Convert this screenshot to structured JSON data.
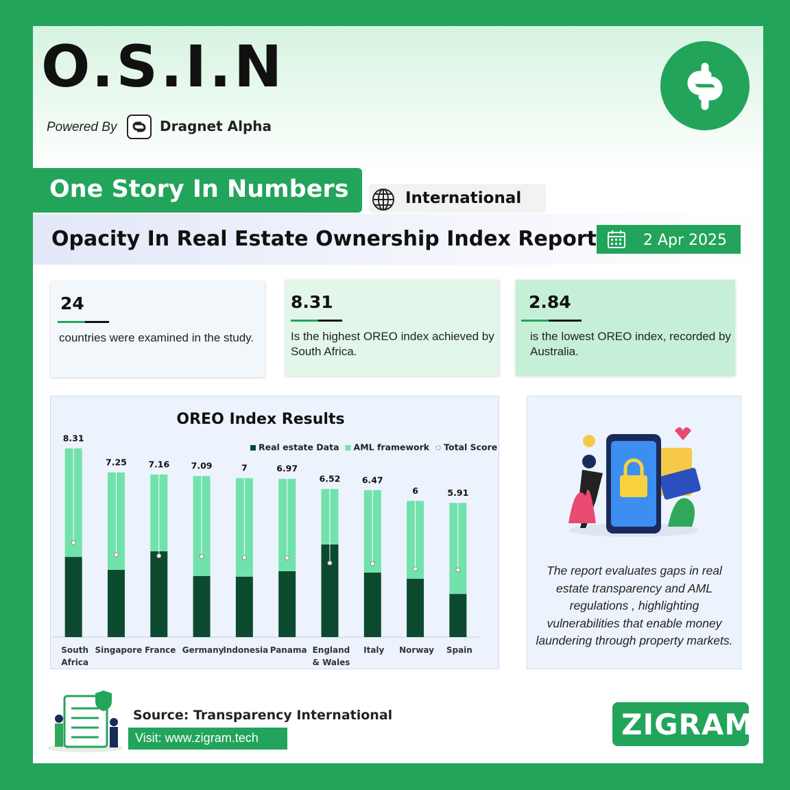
{
  "header": {
    "title": "O.S.I.N",
    "powered_by": "Powered By",
    "brand": "Dragnet Alpha"
  },
  "tab": "One Story In Numbers",
  "region": "International",
  "report_title": "Opacity In Real Estate Ownership Index Report",
  "date": "2 Apr 2025",
  "stats": [
    {
      "value": 24,
      "text": "countries were examined in the study."
    },
    {
      "value": 8.31,
      "text": "Is the highest OREO index achieved by South Africa."
    },
    {
      "value": 2.84,
      "text": "is the lowest OREO index, recorded by Australia."
    }
  ],
  "chart_data": {
    "type": "bar",
    "stacked": true,
    "title": "OREO Index Results",
    "categories": [
      "South Africa",
      "Singapore",
      "France",
      "Germany",
      "Indonesia",
      "Panama",
      "England & Wales",
      "Italy",
      "Norway",
      "Spain"
    ],
    "series": [
      {
        "name": "Real estate Data",
        "color": "#0c4a30",
        "values": [
          3.53,
          2.96,
          3.78,
          2.69,
          2.66,
          2.9,
          4.08,
          2.84,
          2.57,
          1.9
        ]
      },
      {
        "name": "AML framework",
        "color": "#72e2ad",
        "values": [
          4.78,
          4.29,
          3.38,
          4.4,
          4.34,
          4.07,
          2.44,
          3.63,
          3.43,
          4.01
        ]
      },
      {
        "name": "Total Score",
        "color": "#ffffff",
        "axis": "y2",
        "values": [
          8.31,
          7.25,
          7.16,
          7.09,
          7,
          6.97,
          6.52,
          6.47,
          6,
          5.91
        ]
      }
    ],
    "ylim": [
      0,
      9
    ],
    "y2lim": [
      0,
      18
    ],
    "legend": "top-right"
  },
  "description": "The report evaluates gaps in real estate transparency and AML regulations , highlighting vulnerabilities that enable money laundering through property markets.",
  "footer": {
    "source": "Source: Transparency International",
    "visit": "Visit: www.zigram.tech",
    "logo": "ZIGRAM"
  }
}
